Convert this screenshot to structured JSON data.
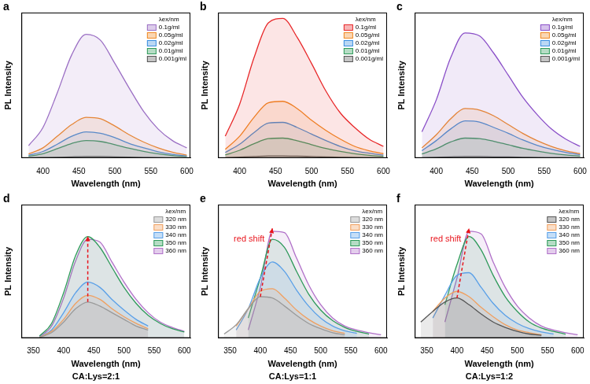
{
  "chart_data": [
    {
      "type": "line",
      "panel": "a",
      "x_label": "Wavelength (nm)",
      "y_label": "PL Intensity",
      "legend_title": "λex/nm",
      "legend": "top right",
      "grid": false,
      "tick_labels": "x",
      "x": [
        380,
        400,
        420,
        440,
        460,
        480,
        500,
        520,
        540,
        560,
        580,
        600
      ],
      "xlim": [
        370,
        605
      ],
      "xticks": [
        400,
        450,
        500,
        550,
        600
      ],
      "ylim": [
        0,
        100
      ],
      "series": [
        {
          "name": "0.1g/ml",
          "color": "#9b6fc4",
          "values": [
            8.5,
            21,
            45,
            71,
            85,
            81,
            65,
            48,
            32,
            20,
            12,
            7
          ]
        },
        {
          "name": "0.05g/ml",
          "color": "#f08a24",
          "values": [
            2.8,
            7,
            15,
            23,
            28,
            27,
            22,
            16,
            11,
            7,
            4,
            2
          ]
        },
        {
          "name": "0.02g/ml",
          "color": "#3c8fe0",
          "values": [
            1.8,
            4.5,
            9.5,
            15,
            18,
            17,
            14,
            10,
            7,
            4.3,
            2.5,
            1.4
          ]
        },
        {
          "name": "0.01g/ml",
          "color": "#2e9a5a",
          "values": [
            1.2,
            3,
            6.4,
            10,
            12,
            11.4,
            9.2,
            6.7,
            4.6,
            2.9,
            1.7,
            1
          ]
        },
        {
          "name": "0.001g/ml",
          "color": "#555555",
          "values": [
            0.1,
            0.3,
            0.5,
            0.8,
            1,
            1,
            0.8,
            0.6,
            0.4,
            0.2,
            0.1,
            0.1
          ]
        }
      ]
    },
    {
      "type": "line",
      "panel": "b",
      "x_label": "Wavelength (nm)",
      "y_label": "PL Intensity",
      "legend_title": "λex/nm",
      "legend": "top right",
      "grid": false,
      "tick_labels": "x",
      "x": [
        380,
        400,
        420,
        440,
        460,
        480,
        500,
        520,
        540,
        560,
        580,
        600
      ],
      "xlim": [
        370,
        605
      ],
      "xticks": [
        400,
        450,
        500,
        550,
        600
      ],
      "ylim": [
        0,
        100
      ],
      "series": [
        {
          "name": "0.1g/ml",
          "color": "#e8282a",
          "values": [
            15,
            37,
            69,
            93,
            96,
            83,
            65,
            46,
            31,
            21,
            13,
            8
          ]
        },
        {
          "name": "0.05g/ml",
          "color": "#f08a24",
          "values": [
            6,
            15,
            28,
            38,
            39,
            34,
            26,
            19,
            13,
            8,
            5,
            3
          ]
        },
        {
          "name": "0.02g/ml",
          "color": "#3c8fe0",
          "values": [
            3.8,
            9.5,
            17.5,
            24,
            24.5,
            21,
            16.5,
            12,
            8,
            5,
            3.3,
            2
          ]
        },
        {
          "name": "0.01g/ml",
          "color": "#2e9a5a",
          "values": [
            2.1,
            5.3,
            9.8,
            13.3,
            13.7,
            11.9,
            9.2,
            6.6,
            4.5,
            2.9,
            1.8,
            1.1
          ]
        },
        {
          "name": "0.001g/ml",
          "color": "#555555",
          "values": [
            0.2,
            0.6,
            1,
            1.4,
            1.5,
            1.3,
            1,
            0.7,
            0.5,
            0.3,
            0.2,
            0.1
          ]
        }
      ]
    },
    {
      "type": "line",
      "panel": "c",
      "x_label": "Wavelength (nm)",
      "y_label": "PL Intensity",
      "legend_title": "λex/nm",
      "legend": "top right",
      "grid": false,
      "tick_labels": "x",
      "x": [
        380,
        400,
        420,
        440,
        460,
        480,
        500,
        520,
        540,
        560,
        580,
        600
      ],
      "xlim": [
        370,
        605
      ],
      "xticks": [
        400,
        450,
        500,
        550,
        600
      ],
      "ylim": [
        0,
        100
      ],
      "series": [
        {
          "name": "0.1g/ml",
          "color": "#8a4fc8",
          "values": [
            18,
            40,
            69,
            86,
            84,
            72,
            57,
            42,
            30,
            20,
            13,
            8
          ]
        },
        {
          "name": "0.05g/ml",
          "color": "#f08a24",
          "values": [
            7,
            16,
            27,
            34,
            33,
            29,
            23,
            17,
            12,
            8,
            5,
            3
          ]
        },
        {
          "name": "0.02g/ml",
          "color": "#3c8fe0",
          "values": [
            5,
            12,
            20,
            25.5,
            24.7,
            21,
            17,
            12.5,
            8.8,
            6,
            3.9,
            2.3
          ]
        },
        {
          "name": "0.01g/ml",
          "color": "#2e9a5a",
          "values": [
            2.8,
            6.3,
            11,
            13.7,
            13.3,
            11.5,
            9.1,
            6.7,
            4.8,
            3.2,
            2.1,
            1.3
          ]
        },
        {
          "name": "0.001g/ml",
          "color": "#555555",
          "values": [
            0.2,
            0.5,
            0.8,
            1,
            1,
            0.8,
            0.7,
            0.5,
            0.3,
            0.2,
            0.2,
            0.1
          ]
        }
      ]
    },
    {
      "type": "line",
      "panel": "d",
      "x_label": "Wavelength (nm)",
      "y_label": "PL Intensity",
      "legend_title": "λex/nm",
      "legend": "top right",
      "grid": false,
      "tick_labels": "x",
      "subtitle": "CA:Lys=2:1",
      "x": [
        340,
        360,
        380,
        400,
        420,
        440,
        460,
        480,
        500,
        520,
        540,
        560,
        580,
        600
      ],
      "xlim": [
        330,
        610
      ],
      "xticks": [
        350,
        400,
        450,
        500,
        550,
        600
      ],
      "ylim": [
        0,
        100
      ],
      "series": [
        {
          "name": "320 nm",
          "color": "#9a9a9a",
          "values": [
            null,
            0.5,
            4,
            12,
            22,
            27,
            24,
            19,
            14,
            9,
            6,
            null,
            null,
            null
          ]
        },
        {
          "name": "330 nm",
          "color": "#f0a060",
          "values": [
            null,
            0.6,
            5,
            14,
            26,
            32,
            29,
            22,
            16,
            11,
            7,
            null,
            null,
            null
          ]
        },
        {
          "name": "340 nm",
          "color": "#5aa0e8",
          "values": [
            null,
            0.8,
            6,
            19,
            34,
            42,
            38,
            29,
            21,
            14,
            9,
            null,
            null,
            null
          ]
        },
        {
          "name": "350 nm",
          "color": "#2e9a5a",
          "values": [
            null,
            1.5,
            11,
            34,
            62,
            76,
            68,
            53,
            38,
            26,
            17,
            11,
            7,
            4.6
          ]
        },
        {
          "name": "360 nm",
          "color": "#b070c8",
          "values": [
            null,
            1,
            9,
            30,
            58,
            74,
            72,
            57,
            42,
            29,
            19,
            12,
            8,
            5
          ]
        }
      ]
    },
    {
      "type": "line",
      "panel": "e",
      "x_label": "Wavelength (nm)",
      "y_label": "PL Intensity",
      "legend_title": "λex/nm",
      "legend": "top right",
      "grid": false,
      "tick_labels": "x",
      "subtitle": "CA:Lys=1:1",
      "annotations": [
        "red shift"
      ],
      "x": [
        340,
        360,
        380,
        400,
        420,
        440,
        460,
        480,
        500,
        520,
        540,
        560,
        580,
        600
      ],
      "xlim": [
        330,
        610
      ],
      "xticks": [
        350,
        400,
        450,
        500,
        550,
        600
      ],
      "ylim": [
        0,
        100
      ],
      "series": [
        {
          "name": "320 nm",
          "color": "#9a9a9a",
          "values": [
            3,
            10,
            22,
            31,
            30,
            24,
            17,
            11,
            7,
            4,
            2.5,
            null,
            null,
            null
          ]
        },
        {
          "name": "330 nm",
          "color": "#f0a060",
          "values": [
            null,
            9,
            22,
            35,
            37,
            30,
            21,
            14,
            9,
            5.5,
            3.5,
            null,
            null,
            null
          ]
        },
        {
          "name": "340 nm",
          "color": "#5aa0e8",
          "values": [
            null,
            6,
            22,
            45,
            57,
            50,
            36,
            24,
            15,
            9,
            5.5,
            3.5,
            null,
            null
          ]
        },
        {
          "name": "350 nm",
          "color": "#2e9a5a",
          "values": [
            null,
            null,
            15,
            45,
            74,
            68,
            50,
            33,
            21,
            13,
            8,
            5,
            3,
            null
          ]
        },
        {
          "name": "360 nm",
          "color": "#b070c8",
          "values": [
            null,
            null,
            6,
            38,
            80,
            79,
            60,
            40,
            25,
            15,
            9,
            6,
            4,
            2.5
          ]
        }
      ]
    },
    {
      "type": "line",
      "panel": "f",
      "x_label": "Wavelength (nm)",
      "y_label": "PL Intensity",
      "legend_title": "λex/nm",
      "legend": "top right",
      "grid": false,
      "tick_labels": "x",
      "subtitle": "CA:Lys=1:2",
      "annotations": [
        "red shift"
      ],
      "x": [
        340,
        360,
        380,
        400,
        420,
        440,
        460,
        480,
        500,
        520,
        540,
        560,
        580,
        600
      ],
      "xlim": [
        330,
        610
      ],
      "xticks": [
        350,
        400,
        450,
        500,
        550,
        600
      ],
      "ylim": [
        0,
        100
      ],
      "series": [
        {
          "name": "320 nm",
          "color": "#555555",
          "values": [
            12,
            20,
            27,
            30,
            25,
            18,
            12,
            8,
            5,
            3,
            2,
            null,
            null,
            null
          ]
        },
        {
          "name": "330 nm",
          "color": "#f0a060",
          "values": [
            null,
            20,
            30,
            35,
            31,
            23,
            16,
            10,
            6,
            4,
            2.5,
            null,
            null,
            null
          ]
        },
        {
          "name": "340 nm",
          "color": "#5aa0e8",
          "values": [
            null,
            15,
            32,
            47,
            49,
            38,
            26,
            17,
            11,
            7,
            4.5,
            3,
            null,
            null
          ]
        },
        {
          "name": "350 nm",
          "color": "#2e9a5a",
          "values": [
            null,
            null,
            25,
            55,
            76,
            66,
            47,
            31,
            20,
            12,
            7.5,
            5,
            3,
            null
          ]
        },
        {
          "name": "360 nm",
          "color": "#b070c8",
          "values": [
            null,
            null,
            12,
            45,
            80,
            78,
            57,
            38,
            24,
            15,
            9,
            6,
            4,
            2.5
          ]
        }
      ]
    }
  ]
}
